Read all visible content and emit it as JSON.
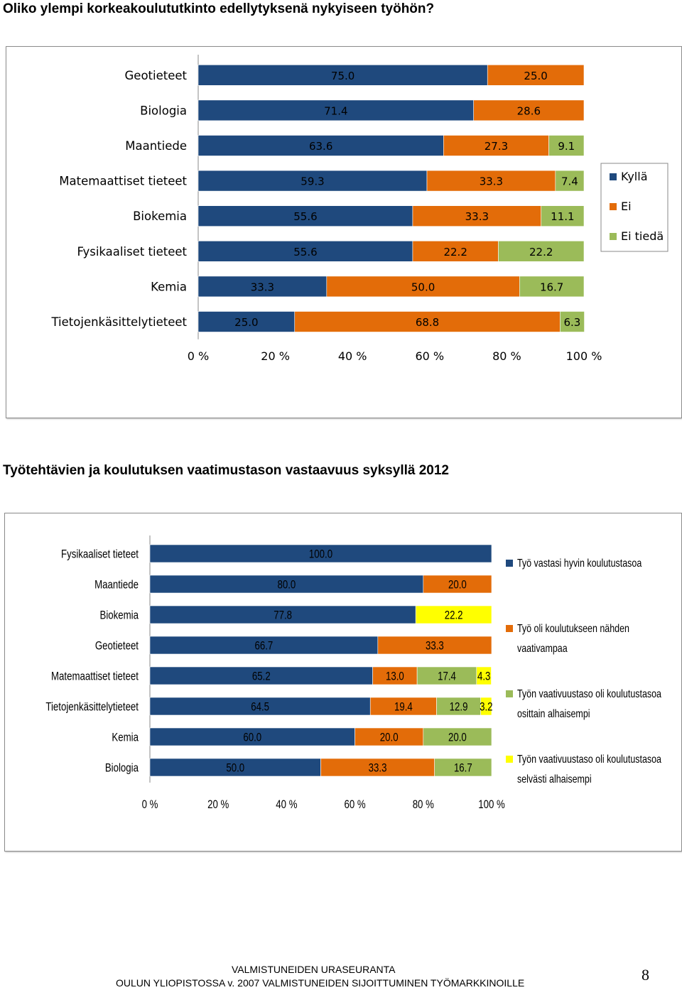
{
  "page": {
    "title": "Oliko ylempi korkeakoulututkinto edellytyksenä nykyiseen työhön?",
    "section_title": "Työtehtävien ja koulutuksen vaatimustason vastaavuus syksyllä 2012",
    "footer_line1": "VALMISTUNEIDEN URASEURANTA",
    "footer_line2": "OULUN  YLIOPISTOSSA v. 2007 VALMISTUNEIDEN  SIJOITTUMINEN TYÖMARKKINOILLE",
    "page_number": "8"
  },
  "chart_data": [
    {
      "type": "bar",
      "orientation": "horizontal-stacked-percent",
      "title": "Oliko ylempi korkeakoulututkinto edellytyksenä nykyiseen työhön?",
      "categories": [
        "Geotieteet",
        "Biologia",
        "Maantiede",
        "Matemaattiset tieteet",
        "Biokemia",
        "Fysikaaliset tieteet",
        "Kemia",
        "Tietojenkäsittelytieteet"
      ],
      "series": [
        {
          "name": "Kyllä",
          "color": "#1f497d",
          "values": [
            75.0,
            71.4,
            63.6,
            59.3,
            55.6,
            55.6,
            33.3,
            25.0
          ]
        },
        {
          "name": "Ei",
          "color": "#e36c09",
          "values": [
            25.0,
            28.6,
            27.3,
            33.3,
            33.3,
            22.2,
            50.0,
            68.8
          ]
        },
        {
          "name": "Ei tiedä",
          "color": "#9bbb59",
          "values": [
            0,
            0,
            9.1,
            7.4,
            11.1,
            22.2,
            16.7,
            6.3
          ]
        }
      ],
      "data_labels": [
        [
          "75.0",
          "25.0",
          ""
        ],
        [
          "71.4",
          "28.6",
          ""
        ],
        [
          "63.6",
          "27.3",
          "9.1"
        ],
        [
          "59.3",
          "33.3",
          "7.4"
        ],
        [
          "55.6",
          "33.3",
          "11.1"
        ],
        [
          "55.6",
          "22.2",
          "22.2"
        ],
        [
          "33.3",
          "50.0",
          "16.7"
        ],
        [
          "25.0",
          "68.8",
          "6.3"
        ]
      ],
      "x_ticks": [
        "0 %",
        "20 %",
        "40 %",
        "60 %",
        "80 %",
        "100 %"
      ],
      "xlim": [
        0,
        100
      ],
      "legend": "right"
    },
    {
      "type": "bar",
      "orientation": "horizontal-stacked-percent",
      "title": "Työtehtävien ja koulutuksen vaatimustason vastaavuus syksyllä 2012",
      "categories": [
        "Fysikaaliset tieteet",
        "Maantiede",
        "Biokemia",
        "Geotieteet",
        "Matemaattiset tieteet",
        "Tietojenkäsittelytieteet",
        "Kemia",
        "Biologia"
      ],
      "series": [
        {
          "name": "Työ vastasi hyvin koulutustasoa",
          "color": "#1f497d",
          "values": [
            100.0,
            80.0,
            77.8,
            66.7,
            65.2,
            64.5,
            60.0,
            50.0
          ]
        },
        {
          "name": "Työ oli koulutukseen nähden vaativampaa",
          "color": "#e36c09",
          "values": [
            0,
            20.0,
            0,
            33.3,
            13.0,
            19.4,
            20.0,
            33.3
          ]
        },
        {
          "name": "Työn vaativuustaso oli koulutustasoa osittain alhaisempi",
          "color": "#9bbb59",
          "values": [
            0,
            0,
            0,
            0,
            17.4,
            12.9,
            20.0,
            16.7
          ]
        },
        {
          "name": "Työn vaativuustaso oli koulutustasoa selvästi alhaisempi",
          "color": "#ffff00",
          "values": [
            0,
            0,
            22.2,
            0,
            4.3,
            3.2,
            0,
            0
          ]
        }
      ],
      "data_labels": [
        [
          "100.0",
          "",
          "",
          ""
        ],
        [
          "80.0",
          "20.0",
          "",
          ""
        ],
        [
          "77.8",
          "",
          "",
          "22.2"
        ],
        [
          "66.7",
          "33.3",
          "",
          ""
        ],
        [
          "65.2",
          "13.0",
          "17.4",
          "4.3"
        ],
        [
          "64.5",
          "19.4",
          "12.9",
          "3.2"
        ],
        [
          "60.0",
          "20.0",
          "20.0",
          ""
        ],
        [
          "50.0",
          "33.3",
          "16.7",
          ""
        ]
      ],
      "legend_lines": [
        [
          "Työ vastasi hyvin koulutustasoa"
        ],
        [
          "Työ oli koulutukseen nähden",
          "vaativampaa"
        ],
        [
          "Työn vaativuustaso oli koulutustasoa",
          "osittain alhaisempi"
        ],
        [
          "Työn vaativuustaso oli koulutustasoa",
          "selvästi alhaisempi"
        ]
      ],
      "x_ticks": [
        "0 %",
        "20 %",
        "40 %",
        "60 %",
        "80 %",
        "100 %"
      ],
      "xlim": [
        0,
        100
      ],
      "legend": "right"
    }
  ]
}
